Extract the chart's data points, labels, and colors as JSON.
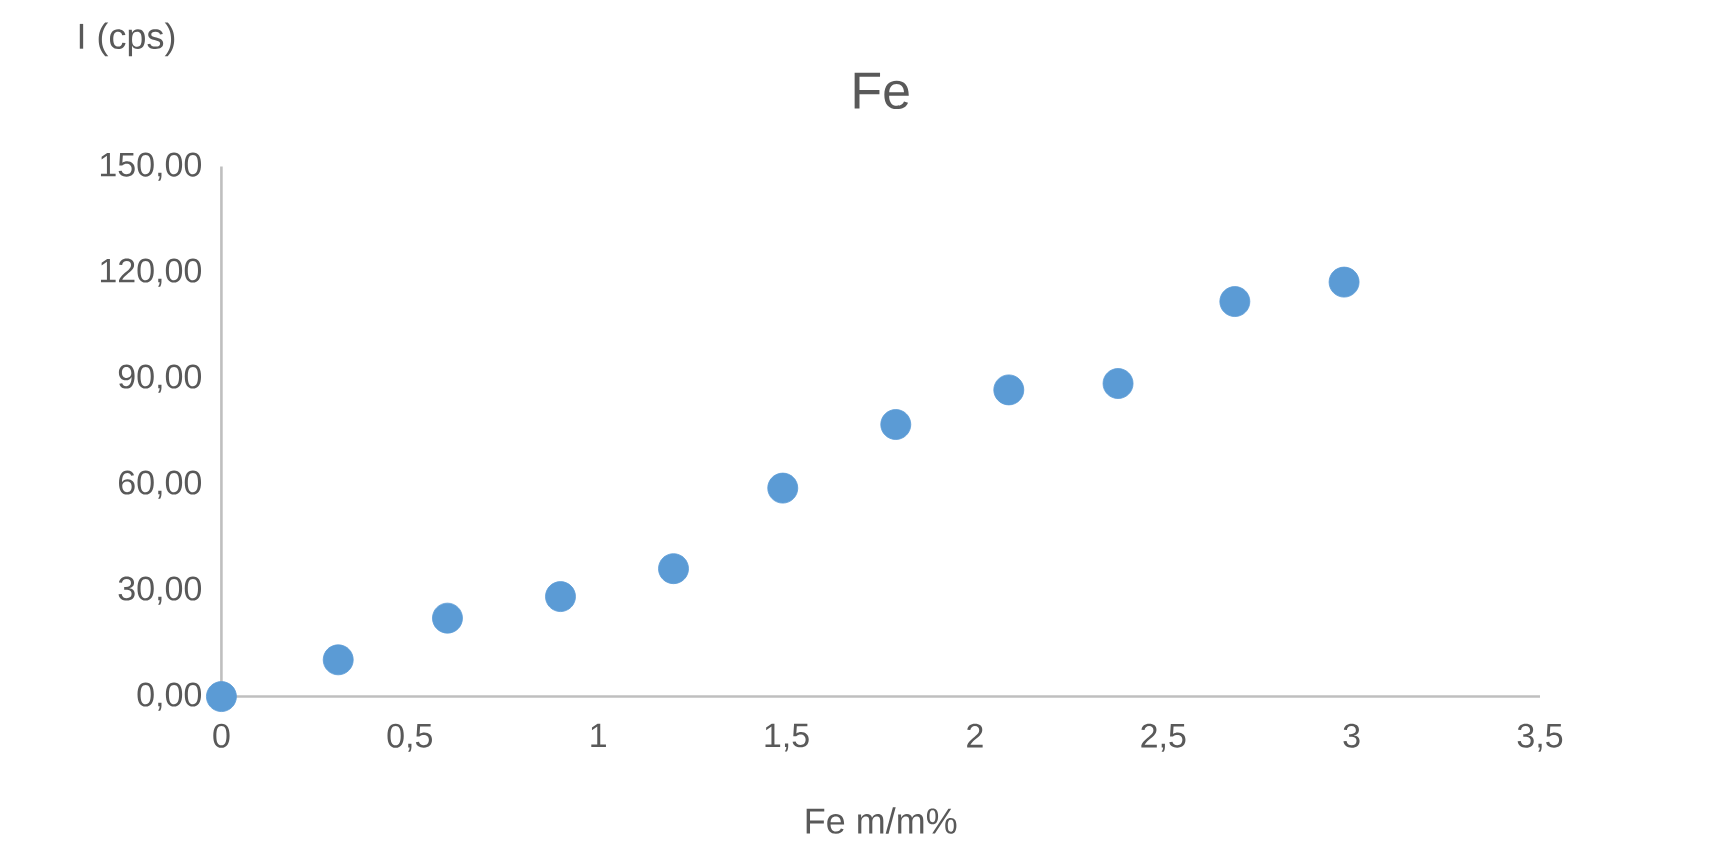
{
  "chart_data": {
    "type": "scatter",
    "title": "Fe",
    "xlabel": "Fe m/m%",
    "ylabel": "I (cps)",
    "x": [
      0,
      0.31,
      0.6,
      0.9,
      1.2,
      1.49,
      1.79,
      2.09,
      2.38,
      2.69,
      2.98
    ],
    "series": [
      {
        "color": "#5b9bd5",
        "values": [
          0,
          10.4,
          22.2,
          28.3,
          36.2,
          59.0,
          77.0,
          86.8,
          88.6,
          111.8,
          117.3
        ]
      }
    ],
    "xlim": [
      0,
      3.5
    ],
    "xticks": [
      0,
      {
        "value": 0.5,
        "label": "0,5"
      },
      1,
      {
        "value": 1.5,
        "label": "1,5"
      },
      2,
      {
        "value": 2.5,
        "label": "2,5"
      },
      3,
      {
        "value": 3.5,
        "label": "3,5"
      }
    ],
    "ylim": [
      0,
      150
    ],
    "yticks": [
      {
        "value": 0,
        "label": "0,00"
      },
      {
        "value": 30,
        "label": "30,00"
      },
      {
        "value": 60,
        "label": "60,00"
      },
      {
        "value": 90,
        "label": "90,00"
      },
      {
        "value": 120,
        "label": "120,00"
      },
      {
        "value": 150,
        "label": "150,00"
      }
    ]
  }
}
